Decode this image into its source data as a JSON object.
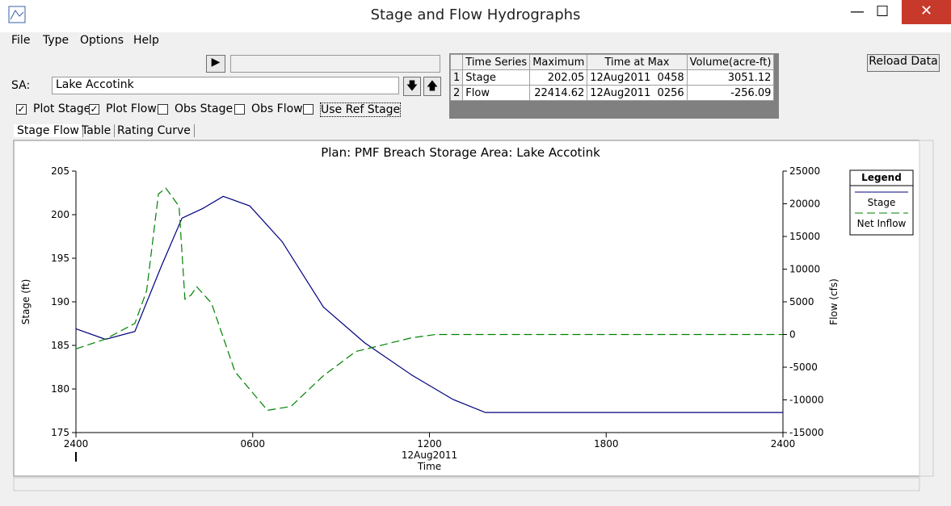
{
  "window": {
    "title": "Stage and Flow Hydrographs"
  },
  "menu": [
    "File",
    "Type",
    "Options",
    "Help"
  ],
  "controls": {
    "sa_label": "SA:",
    "storage_area": "Lake Accotink",
    "reload_button": "Reload Data",
    "checkboxes": [
      {
        "label": "Plot Stage",
        "checked": true
      },
      {
        "label": "Plot Flow",
        "checked": true
      },
      {
        "label": "Obs Stage",
        "checked": false
      },
      {
        "label": "Obs Flow",
        "checked": false
      },
      {
        "label": "Use Ref Stage",
        "checked": false
      }
    ]
  },
  "summary_table": {
    "header": [
      "Time Series",
      "Maximum",
      "Time at Max",
      "Volume(acre-ft)"
    ],
    "rows": [
      [
        "1",
        "Stage",
        "202.05",
        "12Aug2011  0458",
        "3051.12"
      ],
      [
        "2",
        "Flow",
        "22414.62",
        "12Aug2011  0256",
        "-256.09"
      ]
    ]
  },
  "tabs": [
    "Stage Flow",
    "Table",
    "Rating Curve"
  ],
  "chart": {
    "type": "line",
    "title": "Plan: PMF Breach   Storage Area: Lake Accotink",
    "x_label": "Time",
    "x_date_label": "12Aug2011",
    "y_label": "Stage (ft)",
    "y2_label": "Flow (cfs)",
    "legend_title": "Legend",
    "xlim": [
      0,
      24
    ],
    "xticks": [
      {
        "value": 0,
        "label": "2400"
      },
      {
        "value": 6,
        "label": "0600"
      },
      {
        "value": 12,
        "label": "1200"
      },
      {
        "value": 18,
        "label": "1800"
      },
      {
        "value": 24,
        "label": "2400"
      }
    ],
    "ylim": [
      175,
      205
    ],
    "yticks": [
      175,
      180,
      185,
      190,
      195,
      200,
      205
    ],
    "y2lim": [
      -15000,
      25000
    ],
    "y2ticks": [
      -15000,
      -10000,
      -5000,
      0,
      5000,
      10000,
      15000,
      20000,
      25000
    ],
    "series": [
      {
        "name": "Stage",
        "color": "#000080",
        "dashed": false,
        "x": [
          0,
          1,
          2,
          2.9,
          3.6,
          4.3,
          5,
          5.9,
          7,
          8.4,
          9.8,
          11.4,
          12.8,
          13.9,
          24
        ],
        "values": [
          186.9,
          185.7,
          186.6,
          194.1,
          199.6,
          200.7,
          202.1,
          201,
          196.9,
          189.4,
          185.3,
          181.6,
          178.8,
          177.3,
          177.3
        ]
      },
      {
        "name": "Net Inflow",
        "color": "#008000",
        "dashed": true,
        "axis": "y2",
        "x": [
          0,
          1,
          2,
          2.4,
          2.8,
          3.05,
          3.5,
          3.7,
          3.9,
          4.1,
          4.6,
          5.4,
          6.5,
          7.3,
          8.4,
          9.5,
          11.4,
          12.2,
          24
        ],
        "values": [
          -2200,
          -700,
          1700,
          6700,
          21500,
          22400,
          19600,
          5400,
          6000,
          7300,
          4800,
          -5700,
          -11600,
          -11000,
          -6300,
          -2600,
          -500,
          0,
          0
        ]
      }
    ]
  }
}
